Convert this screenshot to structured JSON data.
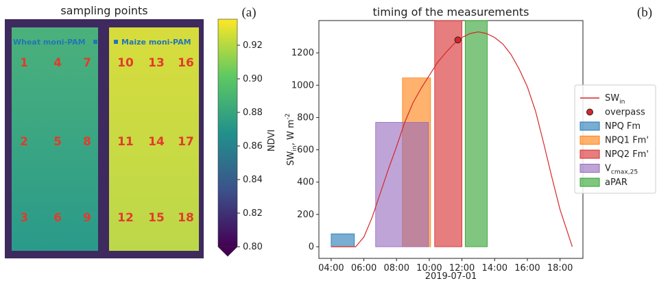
{
  "chart_data": [
    {
      "type": "image",
      "title": "sampling points",
      "panel_label": "(a)",
      "fields": [
        "Wheat moni-PAM",
        "Maize moni-PAM"
      ],
      "points": [
        "1",
        "4",
        "7",
        "10",
        "13",
        "16",
        "2",
        "5",
        "8",
        "11",
        "14",
        "17",
        "3",
        "6",
        "9",
        "12",
        "15",
        "18"
      ],
      "colorbar": {
        "label": "NDVI",
        "clim": [
          0.8,
          0.9355
        ],
        "ticks": [
          {
            "value": 0.8,
            "label": "0.80"
          },
          {
            "value": 0.82,
            "label": "0.82"
          },
          {
            "value": 0.84,
            "label": "0.84"
          },
          {
            "value": 0.86,
            "label": "0.86"
          },
          {
            "value": 0.88,
            "label": "0.88"
          },
          {
            "value": 0.9,
            "label": "0.90"
          },
          {
            "value": 0.92,
            "label": "0.92"
          }
        ]
      }
    },
    {
      "type": "line",
      "title": "timing of the measurements",
      "panel_label": "(b)",
      "xlabel": "2019-07-01",
      "ylabel": "SW_{in}, W m^{-2}",
      "xlim": [
        3.25,
        19.4
      ],
      "ylim": [
        -72,
        1400
      ],
      "xticks": [
        {
          "value": 4,
          "label": "04:00"
        },
        {
          "value": 6,
          "label": "06:00"
        },
        {
          "value": 8,
          "label": "08:00"
        },
        {
          "value": 10,
          "label": "10:00"
        },
        {
          "value": 12,
          "label": "12:00"
        },
        {
          "value": 14,
          "label": "14:00"
        },
        {
          "value": 16,
          "label": "16:00"
        },
        {
          "value": 18,
          "label": "18:00"
        }
      ],
      "yticks": [
        0,
        200,
        400,
        600,
        800,
        1000,
        1200
      ],
      "legend": "outside right",
      "series": [
        {
          "name": "SW_{in}",
          "type": "line",
          "color": "#d62728",
          "x": [
            4,
            5.5,
            6,
            6.5,
            7,
            7.5,
            8,
            8.5,
            9,
            9.5,
            10,
            10.5,
            11,
            11.5,
            12,
            12.5,
            13,
            13.5,
            14,
            14.5,
            15,
            15.5,
            16,
            16.5,
            17,
            17.5,
            18,
            18.75
          ],
          "values": [
            0,
            0,
            60,
            180,
            330,
            480,
            620,
            770,
            890,
            980,
            1060,
            1140,
            1200,
            1255,
            1295,
            1320,
            1330,
            1320,
            1295,
            1255,
            1190,
            1100,
            990,
            840,
            640,
            430,
            230,
            0
          ]
        },
        {
          "name": "overpass",
          "type": "scatter",
          "color": "#d62728",
          "x": [
            11.75
          ],
          "values": [
            1280
          ]
        },
        {
          "name": "NPQ Fm",
          "type": "bar",
          "color": "#1f77b4",
          "bins": [
            4.0,
            5.42
          ],
          "values": [
            80
          ]
        },
        {
          "name": "NPQ1 Fm'",
          "type": "bar",
          "color": "#ff7f0e",
          "bins": [
            8.36,
            10.08
          ],
          "values": [
            1045
          ]
        },
        {
          "name": "NPQ2 Fm'",
          "type": "bar",
          "color": "#d62728",
          "bins": [
            10.33,
            12.0
          ],
          "values": [
            1400
          ]
        },
        {
          "name": "V_{cmax,25}",
          "type": "bar",
          "color": "#9467bd",
          "bins": [
            6.72,
            9.95
          ],
          "values": [
            770
          ]
        },
        {
          "name": "aPAR",
          "type": "bar",
          "color": "#2ca02c",
          "bins": [
            12.2,
            13.55
          ],
          "values": [
            1400
          ]
        }
      ]
    }
  ]
}
